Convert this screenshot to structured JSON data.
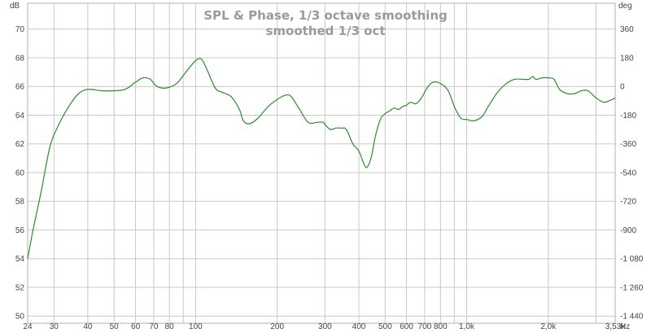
{
  "chart_data": {
    "type": "line",
    "title": "SPL & Phase, 1/3 octave smoothing",
    "subtitle": "smoothed 1/3 oct",
    "x_scale": "log",
    "xlim": [
      24,
      3530
    ],
    "ylim": [
      49.5,
      71.8
    ],
    "y2lim": [
      -1485,
      522
    ],
    "left_unit": "dB",
    "right_unit": "deg",
    "x_unit": "Hz",
    "grid": true,
    "line_color": "#2e8b2e",
    "x_ticks": [
      {
        "v": 24,
        "label": "24"
      },
      {
        "v": 30,
        "label": "30"
      },
      {
        "v": 40,
        "label": "40"
      },
      {
        "v": 50,
        "label": "50"
      },
      {
        "v": 60,
        "label": "60"
      },
      {
        "v": 70,
        "label": "70"
      },
      {
        "v": 80,
        "label": "80"
      },
      {
        "v": 100,
        "label": "100"
      },
      {
        "v": 200,
        "label": "200"
      },
      {
        "v": 300,
        "label": "300"
      },
      {
        "v": 400,
        "label": "400"
      },
      {
        "v": 500,
        "label": "500"
      },
      {
        "v": 600,
        "label": "600"
      },
      {
        "v": 700,
        "label": "700"
      },
      {
        "v": 800,
        "label": "800"
      },
      {
        "v": 1000,
        "label": "1,0k"
      },
      {
        "v": 2000,
        "label": "2,0k"
      },
      {
        "v": 3530,
        "label": "3,53k"
      }
    ],
    "x_gridlines": [
      24,
      30,
      40,
      50,
      60,
      70,
      80,
      90,
      100,
      200,
      300,
      400,
      500,
      600,
      700,
      800,
      900,
      1000,
      2000,
      3000,
      3530
    ],
    "y_ticks": [
      {
        "v": 50,
        "label": "50"
      },
      {
        "v": 52,
        "label": "52"
      },
      {
        "v": 54,
        "label": "54"
      },
      {
        "v": 56,
        "label": "56"
      },
      {
        "v": 58,
        "label": "58"
      },
      {
        "v": 60,
        "label": "60"
      },
      {
        "v": 62,
        "label": "62"
      },
      {
        "v": 64,
        "label": "64"
      },
      {
        "v": 66,
        "label": "66"
      },
      {
        "v": 68,
        "label": "68"
      },
      {
        "v": 70,
        "label": "70"
      }
    ],
    "y2_ticks": [
      {
        "v": 360,
        "label": "360"
      },
      {
        "v": 180,
        "label": "180"
      },
      {
        "v": 0,
        "label": "0"
      },
      {
        "v": -180,
        "label": "-180"
      },
      {
        "v": -360,
        "label": "-360"
      },
      {
        "v": -540,
        "label": "-540"
      },
      {
        "v": -720,
        "label": "-720"
      },
      {
        "v": -900,
        "label": "-900"
      },
      {
        "v": -1080,
        "label": "-1 080"
      },
      {
        "v": -1260,
        "label": "-1 260"
      },
      {
        "v": -1440,
        "label": "-1 440"
      }
    ],
    "series": [
      {
        "x": [
          24,
          25,
          27,
          29,
          31,
          34,
          37,
          40,
          45,
          50,
          55,
          60,
          64,
          68,
          72,
          78,
          85,
          92,
          100,
          105,
          110,
          118,
          125,
          135,
          145,
          150,
          158,
          170,
          185,
          200,
          215,
          225,
          240,
          260,
          280,
          295,
          305,
          315,
          330,
          345,
          360,
          380,
          400,
          420,
          430,
          445,
          460,
          480,
          500,
          520,
          540,
          560,
          580,
          600,
          620,
          650,
          680,
          700,
          720,
          750,
          780,
          800,
          830,
          860,
          900,
          950,
          1000,
          1050,
          1100,
          1150,
          1200,
          1300,
          1400,
          1500,
          1600,
          1700,
          1750,
          1800,
          1900,
          2000,
          2100,
          2200,
          2350,
          2500,
          2650,
          2800,
          3000,
          3200,
          3350,
          3530
        ],
        "y": [
          54.0,
          55.8,
          58.8,
          61.8,
          63.2,
          64.6,
          65.5,
          65.8,
          65.7,
          65.7,
          65.8,
          66.3,
          66.6,
          66.5,
          66.0,
          65.9,
          66.2,
          67.0,
          67.8,
          67.9,
          67.2,
          65.9,
          65.6,
          65.3,
          64.4,
          63.6,
          63.4,
          63.8,
          64.6,
          65.1,
          65.4,
          65.3,
          64.5,
          63.5,
          63.5,
          63.5,
          63.2,
          63.0,
          63.1,
          63.1,
          63.0,
          62.0,
          61.5,
          60.5,
          60.4,
          61.1,
          62.5,
          63.7,
          64.1,
          64.3,
          64.5,
          64.4,
          64.6,
          64.7,
          64.9,
          64.8,
          65.2,
          65.6,
          66.0,
          66.3,
          66.3,
          66.2,
          66.0,
          65.6,
          64.6,
          63.8,
          63.7,
          63.6,
          63.7,
          64.0,
          64.6,
          65.6,
          66.2,
          66.5,
          66.5,
          66.5,
          66.7,
          66.5,
          66.6,
          66.6,
          66.5,
          65.8,
          65.5,
          65.5,
          65.7,
          65.7,
          65.2,
          64.9,
          65.0,
          65.2
        ]
      }
    ]
  }
}
